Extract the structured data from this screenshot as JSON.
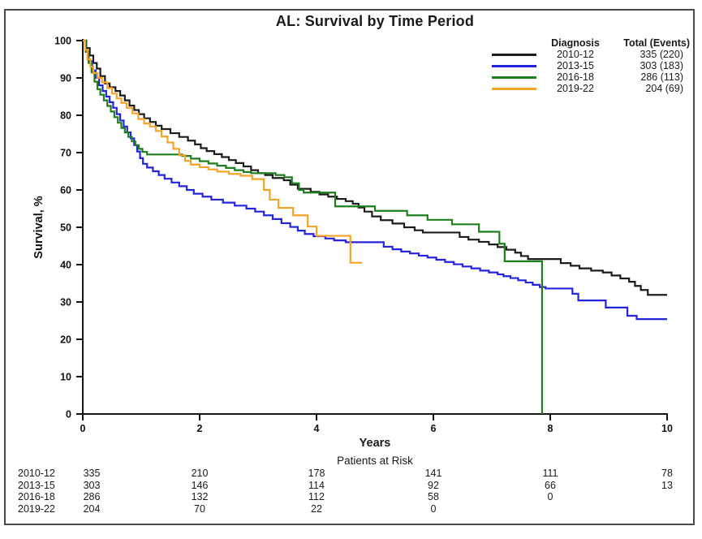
{
  "figure": {
    "title": "AL: Survival by Time Period",
    "background_color": "#ffffff",
    "border_color": "#4a4a4a"
  },
  "axes": {
    "y_label": "Survival, %",
    "x_label": "Years",
    "y_ticks": [
      0,
      10,
      20,
      30,
      40,
      50,
      60,
      70,
      80,
      90,
      100
    ],
    "x_ticks": [
      0,
      2,
      4,
      6,
      8,
      10
    ],
    "x_range": [
      0,
      10
    ],
    "y_range": [
      0,
      100
    ],
    "axis_color": "#151515"
  },
  "legend": {
    "header_diagnosis": "Diagnosis",
    "header_total": "Total (Events)",
    "rows": [
      {
        "label": "2010-12",
        "total": "335 (220)",
        "color": "#1c1c1c"
      },
      {
        "label": "2013-15",
        "total": "303 (183)",
        "color": "#2424dd"
      },
      {
        "label": "2016-18",
        "total": "286 (113)",
        "color": "#1e7e1e"
      },
      {
        "label": "2019-22",
        "total": "204 (69)",
        "color": "#f4a327"
      }
    ]
  },
  "risk_table": {
    "title": "Patients at Risk",
    "rows": [
      {
        "label": "2010-12",
        "years": [
          0,
          2,
          4,
          6,
          8,
          10
        ],
        "values": [
          "335",
          "210",
          "178",
          "141",
          "111",
          "78"
        ]
      },
      {
        "label": "2013-15",
        "years": [
          0,
          2,
          4,
          6,
          8,
          10
        ],
        "values": [
          "303",
          "146",
          "114",
          "92",
          "66",
          "13"
        ]
      },
      {
        "label": "2016-18",
        "years": [
          0,
          2,
          4,
          6,
          8
        ],
        "values": [
          "286",
          "132",
          "112",
          "58",
          "0"
        ]
      },
      {
        "label": "2019-22",
        "years": [
          0,
          2,
          4,
          6
        ],
        "values": [
          "204",
          "70",
          "22",
          "0"
        ]
      }
    ]
  },
  "chart_data": {
    "type": "line",
    "subtype": "kaplan-meier-step",
    "title": "AL: Survival by Time Period",
    "xlabel": "Years",
    "ylabel": "Survival, %",
    "xlim": [
      0,
      10
    ],
    "ylim": [
      0,
      100
    ],
    "grid": false,
    "legend_position": "top-right",
    "series": [
      {
        "name": "2010-12",
        "total": 335,
        "events": 220,
        "color": "#1c1c1c",
        "points": [
          [
            0,
            100
          ],
          [
            0.06,
            98
          ],
          [
            0.12,
            96
          ],
          [
            0.18,
            94
          ],
          [
            0.24,
            92.5
          ],
          [
            0.3,
            90.5
          ],
          [
            0.38,
            88.5
          ],
          [
            0.46,
            87.5
          ],
          [
            0.56,
            86.5
          ],
          [
            0.64,
            85.3
          ],
          [
            0.72,
            84
          ],
          [
            0.8,
            82.6
          ],
          [
            0.88,
            81.4
          ],
          [
            0.96,
            80.3
          ],
          [
            1.05,
            79.2
          ],
          [
            1.15,
            78.2
          ],
          [
            1.25,
            77.2
          ],
          [
            1.35,
            76.3
          ],
          [
            1.5,
            75.2
          ],
          [
            1.65,
            74.2
          ],
          [
            1.8,
            73.2
          ],
          [
            1.92,
            72.2
          ],
          [
            2.02,
            71.2
          ],
          [
            2.12,
            70.4
          ],
          [
            2.25,
            69.6
          ],
          [
            2.38,
            68.8
          ],
          [
            2.5,
            68
          ],
          [
            2.62,
            67.2
          ],
          [
            2.75,
            66.3
          ],
          [
            2.88,
            65.3
          ],
          [
            3,
            64.5
          ],
          [
            3.12,
            64
          ],
          [
            3.25,
            63.2
          ],
          [
            3.44,
            62.6
          ],
          [
            3.55,
            61.4
          ],
          [
            3.68,
            60.3
          ],
          [
            3.9,
            59.5
          ],
          [
            4.05,
            58.8
          ],
          [
            4.2,
            58.2
          ],
          [
            4.35,
            57.6
          ],
          [
            4.5,
            57
          ],
          [
            4.62,
            56.3
          ],
          [
            4.72,
            55.3
          ],
          [
            4.82,
            54.2
          ],
          [
            4.95,
            52.9
          ],
          [
            5.1,
            51.9
          ],
          [
            5.3,
            51
          ],
          [
            5.5,
            50
          ],
          [
            5.68,
            49.2
          ],
          [
            5.82,
            48.6
          ],
          [
            6.45,
            47.4
          ],
          [
            6.6,
            46.7
          ],
          [
            6.78,
            46.1
          ],
          [
            6.95,
            45.4
          ],
          [
            7.1,
            44.7
          ],
          [
            7.25,
            44
          ],
          [
            7.4,
            43.2
          ],
          [
            7.5,
            42.3
          ],
          [
            7.62,
            41.5
          ],
          [
            8.18,
            40.4
          ],
          [
            8.35,
            39.7
          ],
          [
            8.5,
            39
          ],
          [
            8.7,
            38.4
          ],
          [
            8.9,
            37.9
          ],
          [
            9.05,
            37.1
          ],
          [
            9.2,
            36.3
          ],
          [
            9.35,
            35.4
          ],
          [
            9.45,
            34.3
          ],
          [
            9.55,
            33.2
          ],
          [
            9.67,
            31.9
          ],
          [
            10,
            31.9
          ]
        ]
      },
      {
        "name": "2013-15",
        "total": 303,
        "events": 183,
        "color": "#2424dd",
        "points": [
          [
            0,
            100
          ],
          [
            0.05,
            97
          ],
          [
            0.1,
            94.5
          ],
          [
            0.16,
            92
          ],
          [
            0.22,
            90
          ],
          [
            0.28,
            88
          ],
          [
            0.34,
            86.5
          ],
          [
            0.4,
            85
          ],
          [
            0.46,
            83.5
          ],
          [
            0.52,
            82
          ],
          [
            0.58,
            80.3
          ],
          [
            0.64,
            78.6
          ],
          [
            0.7,
            77
          ],
          [
            0.76,
            75.4
          ],
          [
            0.82,
            73.8
          ],
          [
            0.88,
            72
          ],
          [
            0.93,
            70.3
          ],
          [
            0.98,
            68.5
          ],
          [
            1.03,
            67
          ],
          [
            1.1,
            66
          ],
          [
            1.2,
            65
          ],
          [
            1.3,
            64
          ],
          [
            1.4,
            63
          ],
          [
            1.52,
            62
          ],
          [
            1.65,
            61
          ],
          [
            1.78,
            60
          ],
          [
            1.9,
            59
          ],
          [
            2.05,
            58.2
          ],
          [
            2.2,
            57.4
          ],
          [
            2.4,
            56.6
          ],
          [
            2.6,
            55.8
          ],
          [
            2.8,
            55
          ],
          [
            2.95,
            54.2
          ],
          [
            3.1,
            53.2
          ],
          [
            3.25,
            52.2
          ],
          [
            3.4,
            51.1
          ],
          [
            3.55,
            50.1
          ],
          [
            3.68,
            49.1
          ],
          [
            3.8,
            48.2
          ],
          [
            3.95,
            47.6
          ],
          [
            4.15,
            47
          ],
          [
            4.3,
            46.5
          ],
          [
            4.5,
            46
          ],
          [
            5.15,
            44.8
          ],
          [
            5.3,
            44.1
          ],
          [
            5.45,
            43.5
          ],
          [
            5.6,
            43
          ],
          [
            5.75,
            42.4
          ],
          [
            5.9,
            41.9
          ],
          [
            6.05,
            41.3
          ],
          [
            6.2,
            40.7
          ],
          [
            6.35,
            40.1
          ],
          [
            6.5,
            39.5
          ],
          [
            6.65,
            39
          ],
          [
            6.8,
            38.4
          ],
          [
            6.95,
            37.9
          ],
          [
            7.1,
            37.4
          ],
          [
            7.2,
            36.9
          ],
          [
            7.32,
            36.4
          ],
          [
            7.45,
            35.8
          ],
          [
            7.58,
            35.2
          ],
          [
            7.7,
            34.6
          ],
          [
            7.82,
            34
          ],
          [
            7.92,
            33.6
          ],
          [
            8.38,
            32.2
          ],
          [
            8.48,
            30.4
          ],
          [
            8.95,
            28.5
          ],
          [
            9.32,
            26.3
          ],
          [
            9.48,
            25.4
          ],
          [
            10,
            25.4
          ]
        ]
      },
      {
        "name": "2016-18",
        "total": 286,
        "events": 113,
        "color": "#1e7e1e",
        "points": [
          [
            0,
            100
          ],
          [
            0.05,
            97
          ],
          [
            0.1,
            94
          ],
          [
            0.15,
            91.5
          ],
          [
            0.2,
            89
          ],
          [
            0.25,
            87
          ],
          [
            0.3,
            85.5
          ],
          [
            0.36,
            84
          ],
          [
            0.42,
            82.5
          ],
          [
            0.48,
            81
          ],
          [
            0.54,
            79.5
          ],
          [
            0.6,
            78
          ],
          [
            0.66,
            76.6
          ],
          [
            0.72,
            75.4
          ],
          [
            0.78,
            74.2
          ],
          [
            0.84,
            73
          ],
          [
            0.9,
            72
          ],
          [
            0.96,
            71
          ],
          [
            1.02,
            70.2
          ],
          [
            1.1,
            69.5
          ],
          [
            1.7,
            69.1
          ],
          [
            1.85,
            68.4
          ],
          [
            2,
            67.7
          ],
          [
            2.15,
            67.1
          ],
          [
            2.3,
            66.5
          ],
          [
            2.45,
            65.9
          ],
          [
            2.6,
            65.3
          ],
          [
            2.75,
            64.8
          ],
          [
            2.88,
            64.5
          ],
          [
            3.3,
            64
          ],
          [
            3.45,
            63.4
          ],
          [
            3.58,
            61.8
          ],
          [
            3.7,
            60
          ],
          [
            3.78,
            59.3
          ],
          [
            4.32,
            55.6
          ],
          [
            5,
            54.4
          ],
          [
            5.55,
            53.2
          ],
          [
            5.9,
            52
          ],
          [
            6.32,
            50.8
          ],
          [
            6.78,
            48.8
          ],
          [
            7.13,
            45.6
          ],
          [
            7.22,
            40.9
          ],
          [
            7.86,
            0
          ]
        ]
      },
      {
        "name": "2019-22",
        "total": 204,
        "events": 69,
        "color": "#f4a327",
        "points": [
          [
            0,
            100
          ],
          [
            0.04,
            97.5
          ],
          [
            0.08,
            95
          ],
          [
            0.13,
            93
          ],
          [
            0.18,
            91.3
          ],
          [
            0.25,
            90
          ],
          [
            0.33,
            88.8
          ],
          [
            0.42,
            87.3
          ],
          [
            0.5,
            85.8
          ],
          [
            0.58,
            84.5
          ],
          [
            0.66,
            83.3
          ],
          [
            0.75,
            82
          ],
          [
            0.85,
            80.5
          ],
          [
            0.95,
            79
          ],
          [
            1.05,
            77.8
          ],
          [
            1.15,
            77
          ],
          [
            1.25,
            75.8
          ],
          [
            1.35,
            74.3
          ],
          [
            1.45,
            72.7
          ],
          [
            1.55,
            71
          ],
          [
            1.65,
            69.3
          ],
          [
            1.75,
            67.8
          ],
          [
            1.85,
            66.8
          ],
          [
            2,
            66.1
          ],
          [
            2.15,
            65.5
          ],
          [
            2.3,
            64.9
          ],
          [
            2.5,
            64.3
          ],
          [
            2.7,
            63.8
          ],
          [
            2.9,
            62.9
          ],
          [
            3.1,
            60
          ],
          [
            3.2,
            57.4
          ],
          [
            3.35,
            55.2
          ],
          [
            3.6,
            53.2
          ],
          [
            3.85,
            50.2
          ],
          [
            4,
            47.7
          ],
          [
            4.58,
            40.5
          ],
          [
            4.78,
            40.5
          ]
        ]
      }
    ]
  }
}
